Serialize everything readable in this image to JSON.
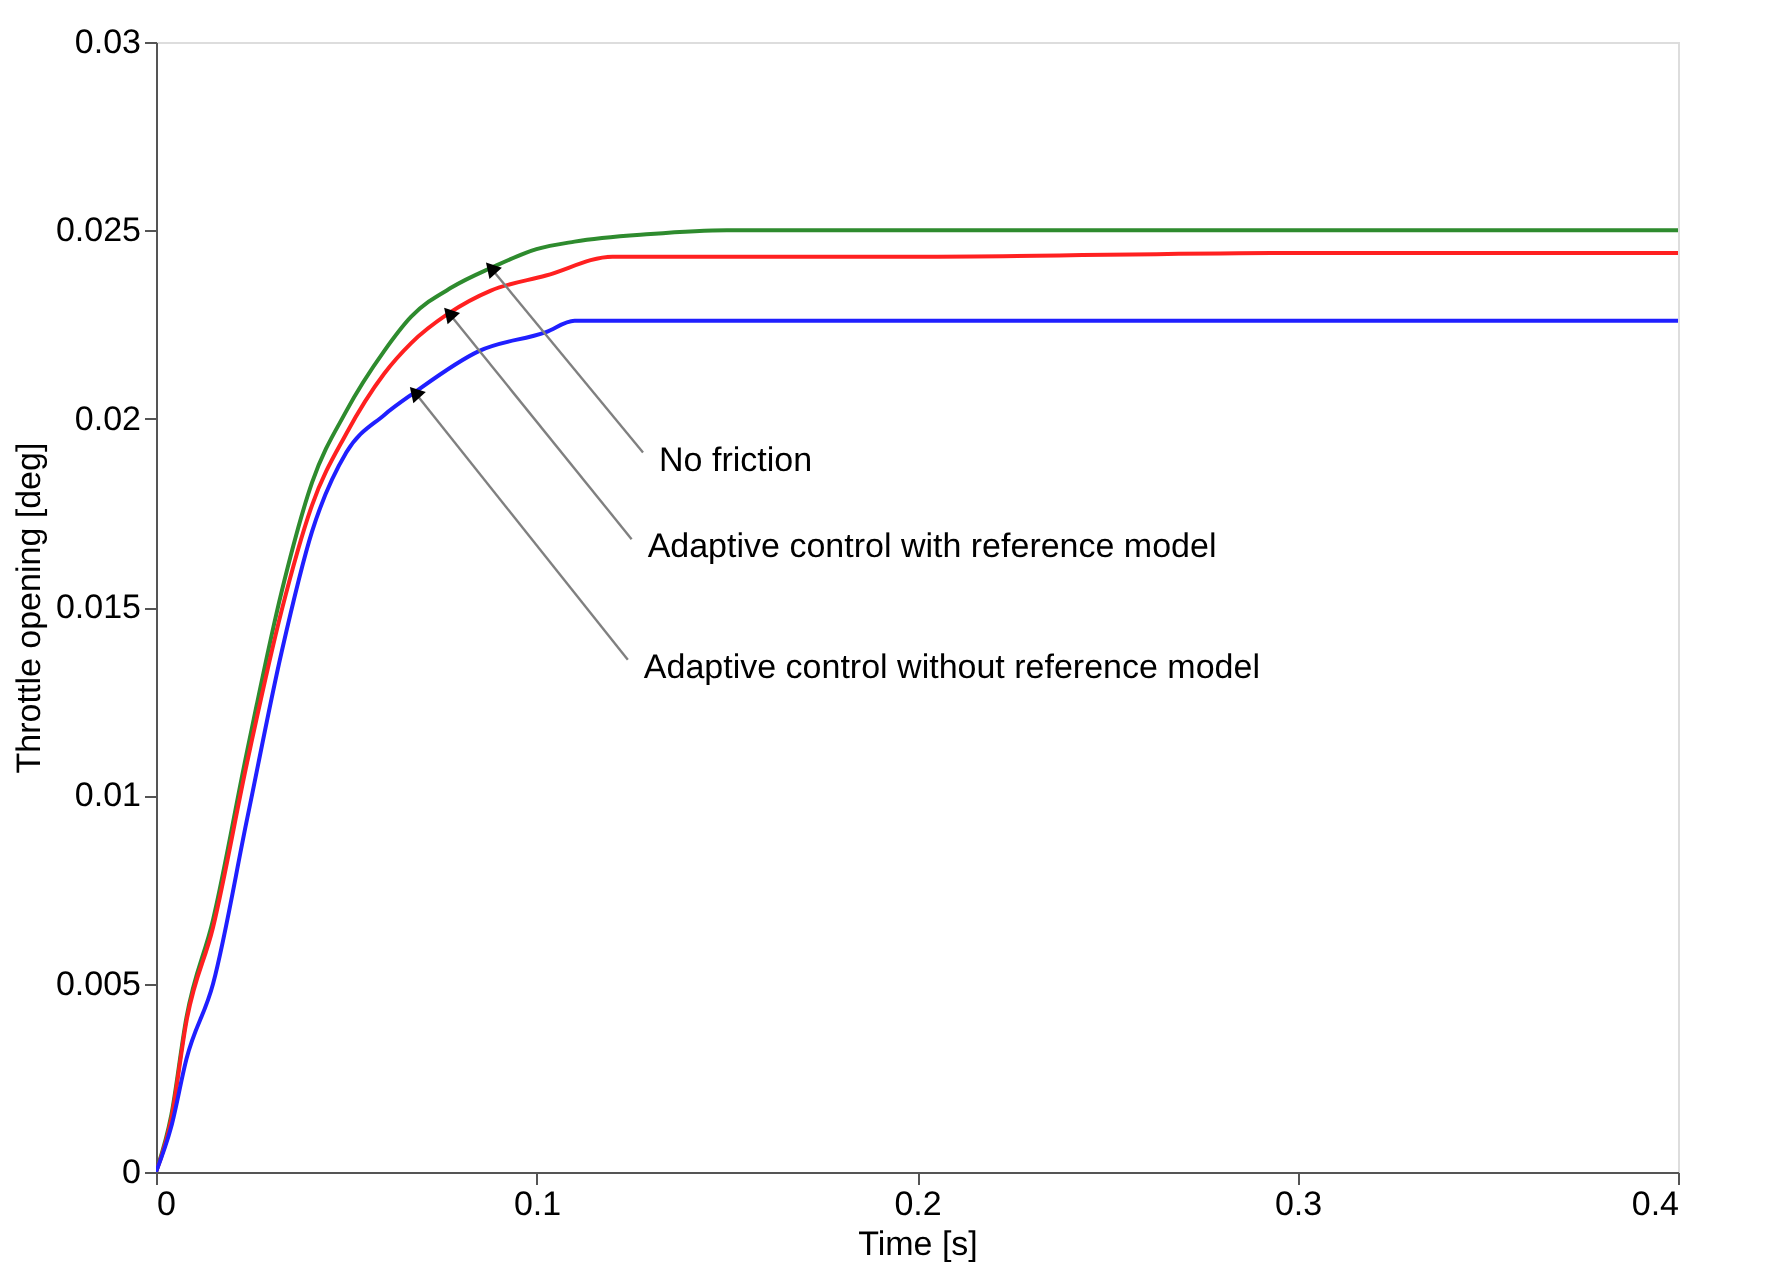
{
  "chart_data": {
    "type": "line",
    "xlabel": "Time [s]",
    "ylabel": "Throttle opening [deg]",
    "xlim": [
      0,
      0.4
    ],
    "xticks": [
      0,
      0.1,
      0.2,
      0.3,
      0.4
    ],
    "ylim": [
      0,
      0.03
    ],
    "yticks": [
      0,
      0.005,
      0.01,
      0.015,
      0.02,
      0.025,
      0.03
    ],
    "grid": false,
    "line_style": "solid",
    "marker": "none",
    "series": [
      {
        "color": "#2e8b2e",
        "x": [
          0,
          0.004,
          0.008,
          0.015,
          0.024,
          0.033,
          0.041,
          0.05,
          0.06,
          0.067,
          0.078,
          0.088,
          0.1,
          0.11,
          0.13,
          0.15,
          0.2,
          0.3,
          0.4
        ],
        "values": [
          0,
          0.0015,
          0.0041,
          0.0067,
          0.0112,
          0.0154,
          0.0183,
          0.0202,
          0.0218,
          0.0227,
          0.0235,
          0.024,
          0.0245,
          0.0247,
          0.0249,
          0.025,
          0.025,
          0.025,
          0.025
        ]
      },
      {
        "color": "#ff2020",
        "x": [
          0,
          0.004,
          0.008,
          0.015,
          0.024,
          0.033,
          0.041,
          0.05,
          0.06,
          0.067,
          0.077,
          0.088,
          0.1025,
          0.12,
          0.15,
          0.2,
          0.3,
          0.4
        ],
        "values": [
          0,
          0.0014,
          0.004,
          0.0065,
          0.0109,
          0.0149,
          0.0177,
          0.0196,
          0.0212,
          0.022,
          0.0228,
          0.0234,
          0.0238,
          0.0243,
          0.0243,
          0.0243,
          0.0244,
          0.0244
        ]
      },
      {
        "color": "#1f1fff",
        "x": [
          0,
          0.004,
          0.008,
          0.015,
          0.024,
          0.033,
          0.041,
          0.05,
          0.06,
          0.068,
          0.085,
          0.1025,
          0.11,
          0.15,
          0.2,
          0.3,
          0.4
        ],
        "values": [
          0,
          0.0012,
          0.003,
          0.005,
          0.0094,
          0.0138,
          0.017,
          0.0191,
          0.0201,
          0.0207,
          0.0218,
          0.0223,
          0.0226,
          0.0226,
          0.0226,
          0.0226,
          0.0226
        ]
      }
    ],
    "annotations": [
      {
        "text": "No friction",
        "x": 0.088,
        "y": 0.024
      },
      {
        "text": "Adaptive control with reference model",
        "x": 0.077,
        "y": 0.0228
      },
      {
        "text": "Adaptive control without reference model",
        "x": 0.068,
        "y": 0.0207
      }
    ]
  }
}
